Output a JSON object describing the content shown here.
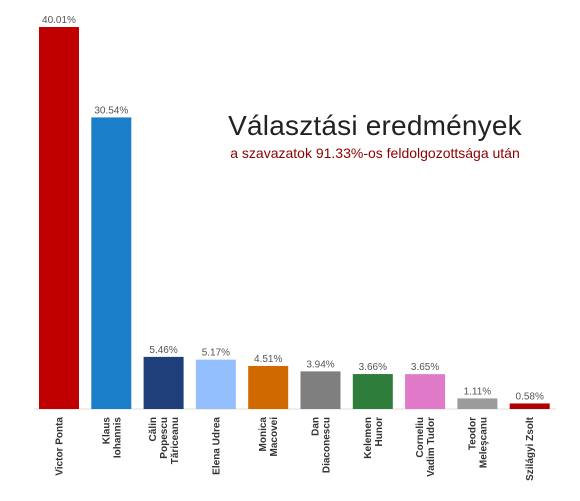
{
  "chart_data": {
    "type": "bar",
    "title": "Választási eredmények",
    "subtitle": "a szavazatok 91.33%-os feldolgozottsága után",
    "categories": [
      "Victor Ponta",
      "Klaus Iohannis",
      "Călin Popescu Tăriceanu",
      "Elena Udrea",
      "Monica Macovei",
      "Dan Diaconescu",
      "Kelemen Hunor",
      "Corneliu Vadim Tudor",
      "Teodor Meleşcanu",
      "Szilágyi Zsolt"
    ],
    "category_lines": [
      [
        "Victor Ponta"
      ],
      [
        "Klaus",
        "Iohannis"
      ],
      [
        "Călin",
        "Popescu",
        "Tăriceanu"
      ],
      [
        "Elena Udrea"
      ],
      [
        "Monica",
        "Macovei"
      ],
      [
        "Dan",
        "Diaconescu"
      ],
      [
        "Kelemen",
        "Hunor"
      ],
      [
        "Corneliu",
        "Vadim Tudor"
      ],
      [
        "Teodor",
        "Meleşcanu"
      ],
      [
        "Szilágyi Zsolt"
      ]
    ],
    "values": [
      40.01,
      30.54,
      5.46,
      5.17,
      4.51,
      3.94,
      3.66,
      3.65,
      1.11,
      0.58
    ],
    "value_labels": [
      "40.01%",
      "30.54%",
      "5.46%",
      "5.17%",
      "4.51%",
      "3.94%",
      "3.66%",
      "3.65%",
      "1.11%",
      "0.58%"
    ],
    "colors": [
      "#c00000",
      "#1a7fc8",
      "#1f3f7a",
      "#94bfff",
      "#d06a00",
      "#7f7f7f",
      "#2e7d3a",
      "#e07ac8",
      "#9b9b9b",
      "#b00000"
    ],
    "subtitle_color": "#8b0000",
    "ylim": [
      0,
      40.01
    ],
    "grid": false,
    "legend": "none"
  }
}
